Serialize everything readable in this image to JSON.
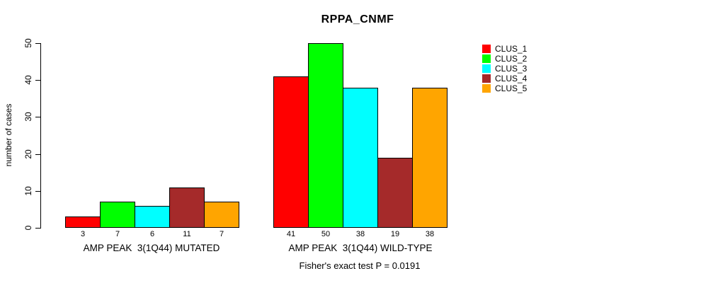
{
  "chart_data": {
    "type": "bar",
    "title": "RPPA_CNMF",
    "ylabel": "number of cases",
    "xlabel": "",
    "ylim": [
      0,
      50
    ],
    "yticks": [
      0,
      10,
      20,
      30,
      40,
      50
    ],
    "grid": false,
    "legend_position": "right",
    "categories": [
      "AMP PEAK  3(1Q44) MUTATED",
      "AMP PEAK  3(1Q44) WILD-TYPE"
    ],
    "series": [
      {
        "name": "CLUS_1",
        "color": "#FF0000",
        "values": [
          3,
          41
        ]
      },
      {
        "name": "CLUS_2",
        "color": "#00FF00",
        "values": [
          7,
          50
        ]
      },
      {
        "name": "CLUS_3",
        "color": "#00FFFF",
        "values": [
          6,
          38
        ]
      },
      {
        "name": "CLUS_4",
        "color": "#A52A2A",
        "values": [
          11,
          19
        ]
      },
      {
        "name": "CLUS_5",
        "color": "#FFA500",
        "values": [
          7,
          38
        ]
      }
    ],
    "bar_value_labels": [
      [
        3,
        7,
        6,
        11,
        7
      ],
      [
        41,
        50,
        38,
        19,
        38
      ]
    ],
    "annotation": "Fisher's exact test P = 0.0191",
    "bar_border_color": "#000000",
    "text_color": "#000000",
    "background_color": "#FFFFFF"
  }
}
